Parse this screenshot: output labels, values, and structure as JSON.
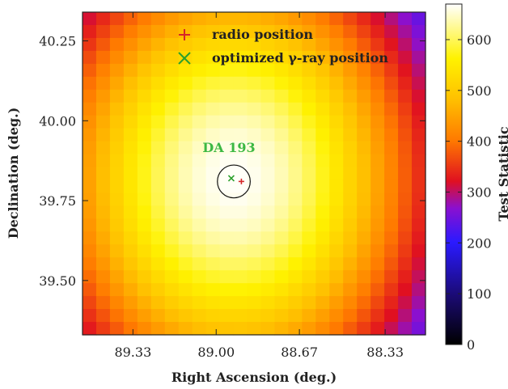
{
  "chart_data": {
    "type": "heatmap",
    "title": "",
    "xlabel": "Right Ascension (deg.)",
    "ylabel": "Declination (deg.)",
    "colorbar_label": "Test Statistic",
    "x_reversed": true,
    "xlim": [
      89.53,
      88.17
    ],
    "ylim": [
      39.33,
      40.34
    ],
    "x_ticks": [
      89.33,
      89.0,
      88.67,
      88.33
    ],
    "x_tick_labels": [
      "89.33",
      "89.00",
      "88.67",
      "88.33"
    ],
    "y_ticks": [
      39.5,
      39.75,
      40.0,
      40.25
    ],
    "y_tick_labels": [
      "39.50",
      "39.75",
      "40.00",
      "40.25"
    ],
    "colorbar_range": [
      0,
      670
    ],
    "colorbar_ticks": [
      0,
      100,
      200,
      300,
      400,
      500,
      600
    ],
    "colorbar_tick_labels": [
      "0",
      "100",
      "200",
      "300",
      "400",
      "500",
      "600"
    ],
    "grid_cells": 25,
    "ts_peak": 668,
    "ts_peak_position": [
      88.93,
      39.82
    ],
    "ts_sigma_x_deg": 0.64,
    "ts_sigma_y_deg": 0.6,
    "legend": {
      "placement": "top",
      "entries": [
        {
          "label": "radio position",
          "marker": "plus",
          "color": "#d62728"
        },
        {
          "label": "optimized γ-ray position",
          "marker": "x",
          "color": "#2ca02c"
        }
      ]
    },
    "points": [
      {
        "name": "radio position",
        "x": 88.9,
        "y": 39.81,
        "marker": "plus",
        "color": "#d62728"
      },
      {
        "name": "optimized gamma-ray position",
        "x": 88.94,
        "y": 39.82,
        "marker": "x",
        "color": "#2ca02c"
      }
    ],
    "source": {
      "label": "DA 193",
      "x": 88.93,
      "y": 39.81,
      "circle_radius_deg": 0.065,
      "color": "#3cb843"
    },
    "colormap": "gnuplot2-like: black-blue-red-orange-yellow-white"
  }
}
